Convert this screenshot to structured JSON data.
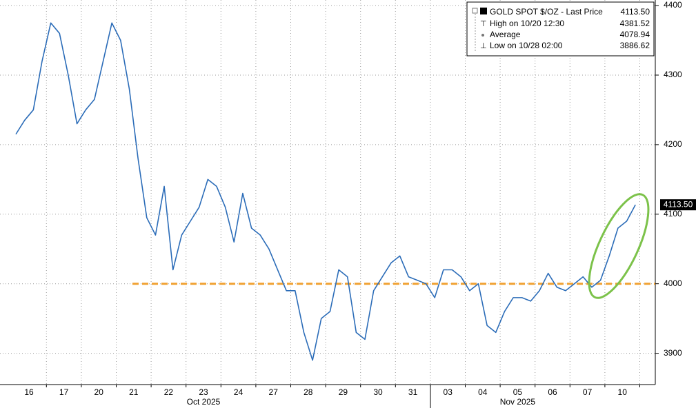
{
  "chart_data": {
    "type": "line",
    "categories": [
      "16",
      "17",
      "20",
      "21",
      "22",
      "23",
      "24",
      "27",
      "28",
      "29",
      "30",
      "31",
      "03",
      "04",
      "05",
      "06",
      "07",
      "10"
    ],
    "months": [
      "Oct 2025",
      "Nov 2025"
    ],
    "series": [
      {
        "name": "GOLD SPOT $/OZ - Last Price",
        "color": "#2b6cb8",
        "values": [
          [
            4215,
            4235,
            4250,
            4320
          ],
          [
            4375,
            4360,
            4300,
            4230
          ],
          [
            4250,
            4265,
            4320,
            4375
          ],
          [
            4350,
            4280,
            4180,
            4095
          ],
          [
            4070,
            4140,
            4020,
            4070
          ],
          [
            4090,
            4110,
            4150,
            4140
          ],
          [
            4110,
            4060,
            4130,
            4080
          ],
          [
            4070,
            4050,
            4020,
            3990
          ],
          [
            3990,
            3930,
            3890,
            3950
          ],
          [
            3960,
            4020,
            4010,
            3930
          ],
          [
            3920,
            3990,
            4010,
            4030
          ],
          [
            4040,
            4010,
            4005,
            4000
          ],
          [
            3980,
            4020,
            4020,
            4010
          ],
          [
            3990,
            4000,
            3940,
            3930
          ],
          [
            3960,
            3980,
            3980,
            3975
          ],
          [
            3990,
            4015,
            3995,
            3990
          ],
          [
            4000,
            4010,
            3995,
            4005
          ],
          [
            4040,
            4080,
            4090,
            4113.5
          ]
        ]
      }
    ],
    "legend": [
      {
        "label": "GOLD SPOT $/OZ - Last Price",
        "value": "4113.50"
      },
      {
        "label": "High on 10/20 12:30",
        "value": "4381.52"
      },
      {
        "label": "Average",
        "value": "4078.94"
      },
      {
        "label": "Low on 10/28 02:00",
        "value": "3886.62"
      }
    ],
    "last_price": {
      "value": 4113.5,
      "label": "4113.50"
    },
    "reference_line": {
      "value": 4000,
      "color": "#f0a030"
    },
    "ylim": [
      3855,
      4408
    ],
    "yticks": [
      3900,
      4000,
      4100,
      4200,
      4300,
      4400
    ],
    "grid": true
  }
}
